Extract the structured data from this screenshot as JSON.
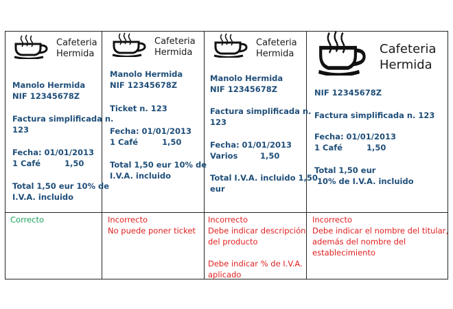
{
  "brand": {
    "line1": "Cafeteria",
    "line2": "Hermida"
  },
  "receipts": [
    {
      "owner": "Manolo Hermida",
      "nif": "NIF 12345678Z",
      "doc_line1": "Factura simplificada n.",
      "doc_line2": "123",
      "date": "Fecha: 01/01/2013",
      "item": "1 Café",
      "item_price": "1,50",
      "total_line1": "Total 1,50 eur 10% de",
      "total_line2": "I.V.A. incluido"
    },
    {
      "owner": "Manolo Hermida",
      "nif": "NIF 12345678Z",
      "doc_line1": "Ticket n. 123",
      "date": "Fecha: 01/01/2013",
      "item": "1 Café",
      "item_price": "1,50",
      "total_line1": "Total 1,50 eur 10% de",
      "total_line2": "I.V.A. incluido"
    },
    {
      "owner": "Manolo Hermida",
      "nif": "NIF 12345678Z",
      "doc_line1": "Factura simplificada n.",
      "doc_line2": "123",
      "date": "Fecha: 01/01/2013",
      "item": "Varios",
      "item_price": "1,50",
      "total_line1": "Total I.V.A. incluido 1,50",
      "total_line2": "eur"
    },
    {
      "nif": "NIF 12345678Z",
      "doc_line1": "Factura simplificada n. 123",
      "date": "Fecha: 01/01/2013",
      "item": "1 Café",
      "item_price": "1,50",
      "total_line1": "Total 1,50 eur",
      "total_line2": "10% de I.V.A. incluido"
    }
  ],
  "verdicts": [
    {
      "status": "Correcto",
      "lines": []
    },
    {
      "status": "Incorrecto",
      "lines": [
        "No puede poner ticket"
      ]
    },
    {
      "status": "Incorrecto",
      "lines": [
        "Debe indicar descripción",
        "del producto",
        "",
        "Debe indicar % de I.V.A.",
        "aplicado"
      ]
    },
    {
      "status": "Incorrecto",
      "lines": [
        "Debe indicar el nombre del titular,",
        "además del nombre del",
        "establecimiento"
      ]
    }
  ],
  "colors": {
    "text_blue": "#1f4e79",
    "correct_green": "#1aa35a",
    "error_red": "#e01e1e"
  },
  "icons": [
    "coffee-cup-icon"
  ]
}
